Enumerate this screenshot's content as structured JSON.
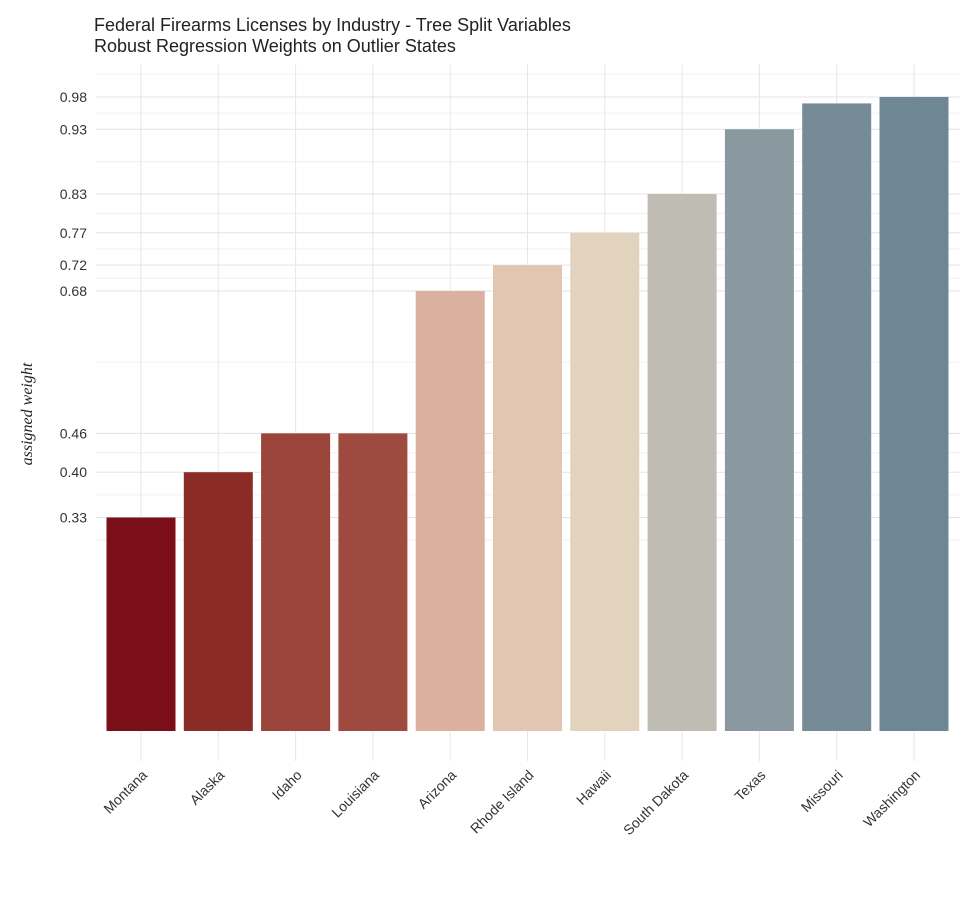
{
  "chart_data": {
    "type": "bar",
    "title": "Federal Firearms Licenses by Industry - Tree Split Variables",
    "subtitle": "Robust Regression Weights on Outlier States",
    "xlabel": "",
    "ylabel": "assigned weight",
    "categories": [
      "Montana",
      "Alaska",
      "Idaho",
      "Louisiana",
      "Arizona",
      "Rhode Island",
      "Hawaii",
      "South Dakota",
      "Texas",
      "Missouri",
      "Washington"
    ],
    "values": [
      0.33,
      0.4,
      0.46,
      0.46,
      0.68,
      0.72,
      0.77,
      0.83,
      0.93,
      0.97,
      0.98
    ],
    "colors": [
      "#7b0f19",
      "#8a2b26",
      "#9b4439",
      "#9f4a3e",
      "#dcb09e",
      "#e2c6b1",
      "#e1d3be",
      "#bebcb3",
      "#89999f",
      "#758c97",
      "#6f8794"
    ],
    "y_ticks": [
      0.33,
      0.4,
      0.46,
      0.68,
      0.72,
      0.77,
      0.83,
      0.93,
      0.98
    ],
    "y_tick_labels": [
      "0.33",
      "0.40",
      "0.46",
      "0.68",
      "0.72",
      "0.77",
      "0.83",
      "0.93",
      "0.98"
    ],
    "ylim": [
      0,
      1.03
    ],
    "grid": true,
    "legend": "none"
  }
}
